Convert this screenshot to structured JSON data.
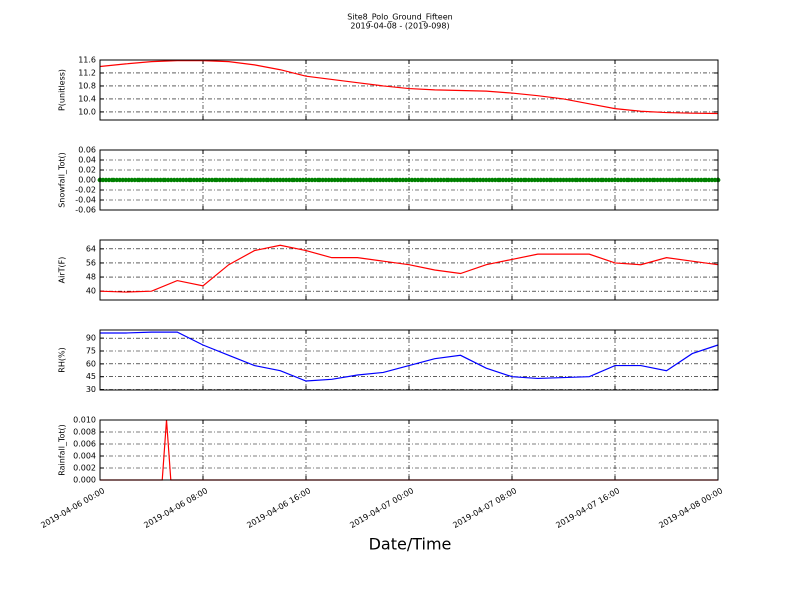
{
  "chart_data": [
    {
      "type": "line",
      "title": "Site8_Polo_Ground_Fifteen",
      "subtitle": "2019-04-08 - (2019-098)",
      "ylabel": "P(unitless)",
      "color": "#ff0000",
      "grid": true,
      "ylim": [
        9.75,
        11.6
      ],
      "yticks": [
        {
          "value": 10,
          "label": "10.0"
        },
        10.4,
        10.8,
        11.2,
        11.6
      ],
      "x": [
        "2019-04-06 00:00",
        "2019-04-06 02:00",
        "2019-04-06 04:00",
        "2019-04-06 06:00",
        "2019-04-06 08:00",
        "2019-04-06 10:00",
        "2019-04-06 12:00",
        "2019-04-06 14:00",
        "2019-04-06 16:00",
        "2019-04-06 18:00",
        "2019-04-06 20:00",
        "2019-04-06 22:00",
        "2019-04-07 00:00",
        "2019-04-07 02:00",
        "2019-04-07 04:00",
        "2019-04-07 06:00",
        "2019-04-07 08:00",
        "2019-04-07 10:00",
        "2019-04-07 12:00",
        "2019-04-07 14:00",
        "2019-04-07 16:00",
        "2019-04-07 18:00",
        "2019-04-07 20:00",
        "2019-04-07 22:00",
        "2019-04-08 00:00"
      ],
      "values": [
        11.4,
        11.48,
        11.55,
        11.58,
        11.58,
        11.55,
        11.45,
        11.3,
        11.1,
        11.0,
        10.9,
        10.8,
        10.72,
        10.68,
        10.66,
        10.64,
        10.58,
        10.5,
        10.4,
        10.25,
        10.1,
        10.02,
        9.98,
        9.96,
        9.95
      ]
    },
    {
      "type": "scatter",
      "ylabel": "Snowfall_Tot()",
      "color": "#008000",
      "grid": true,
      "ylim": [
        -0.06,
        0.06
      ],
      "yticks": [
        -0.06,
        -0.04,
        -0.02,
        {
          "value": 0,
          "label": "0.00"
        },
        0.02,
        0.04,
        0.06
      ],
      "x": [
        "2019-04-06 00:00",
        "2019-04-06 02:00",
        "2019-04-06 04:00",
        "2019-04-06 06:00",
        "2019-04-06 08:00",
        "2019-04-06 10:00",
        "2019-04-06 12:00",
        "2019-04-06 14:00",
        "2019-04-06 16:00",
        "2019-04-06 18:00",
        "2019-04-06 20:00",
        "2019-04-06 22:00",
        "2019-04-07 00:00",
        "2019-04-07 02:00",
        "2019-04-07 04:00",
        "2019-04-07 06:00",
        "2019-04-07 08:00",
        "2019-04-07 10:00",
        "2019-04-07 12:00",
        "2019-04-07 14:00",
        "2019-04-07 16:00",
        "2019-04-07 18:00",
        "2019-04-07 20:00",
        "2019-04-07 22:00",
        "2019-04-08 00:00"
      ],
      "values": [
        0,
        0,
        0,
        0,
        0,
        0,
        0,
        0,
        0,
        0,
        0,
        0,
        0,
        0,
        0,
        0,
        0,
        0,
        0,
        0,
        0,
        0,
        0,
        0,
        0
      ]
    },
    {
      "type": "line",
      "ylabel": "AirT(F)",
      "color": "#ff0000",
      "grid": true,
      "ylim": [
        35,
        69
      ],
      "yticks": [
        40,
        48,
        56,
        64
      ],
      "x": [
        "2019-04-06 00:00",
        "2019-04-06 02:00",
        "2019-04-06 04:00",
        "2019-04-06 06:00",
        "2019-04-06 08:00",
        "2019-04-06 10:00",
        "2019-04-06 12:00",
        "2019-04-06 14:00",
        "2019-04-06 16:00",
        "2019-04-06 18:00",
        "2019-04-06 20:00",
        "2019-04-06 22:00",
        "2019-04-07 00:00",
        "2019-04-07 02:00",
        "2019-04-07 04:00",
        "2019-04-07 06:00",
        "2019-04-07 08:00",
        "2019-04-07 10:00",
        "2019-04-07 12:00",
        "2019-04-07 14:00",
        "2019-04-07 16:00",
        "2019-04-07 18:00",
        "2019-04-07 20:00",
        "2019-04-07 22:00",
        "2019-04-08 00:00"
      ],
      "values": [
        40,
        39.5,
        40,
        46,
        43,
        55,
        63,
        66,
        63,
        59,
        59,
        57,
        55,
        52,
        50,
        55,
        58,
        61,
        61,
        61,
        56,
        55,
        59,
        57,
        55
      ]
    },
    {
      "type": "line",
      "ylabel": "RH(%)",
      "color": "#0000ff",
      "grid": true,
      "ylim": [
        29.5,
        99.5
      ],
      "yticks": [
        30,
        45,
        60,
        75,
        90
      ],
      "x": [
        "2019-04-06 00:00",
        "2019-04-06 02:00",
        "2019-04-06 04:00",
        "2019-04-06 06:00",
        "2019-04-06 08:00",
        "2019-04-06 10:00",
        "2019-04-06 12:00",
        "2019-04-06 14:00",
        "2019-04-06 16:00",
        "2019-04-06 18:00",
        "2019-04-06 20:00",
        "2019-04-06 22:00",
        "2019-04-07 00:00",
        "2019-04-07 02:00",
        "2019-04-07 04:00",
        "2019-04-07 06:00",
        "2019-04-07 08:00",
        "2019-04-07 10:00",
        "2019-04-07 12:00",
        "2019-04-07 14:00",
        "2019-04-07 16:00",
        "2019-04-07 18:00",
        "2019-04-07 20:00",
        "2019-04-07 22:00",
        "2019-04-08 00:00"
      ],
      "values": [
        96,
        96,
        97,
        97,
        82,
        70,
        58,
        52,
        40,
        42,
        47,
        50,
        58,
        66,
        70,
        55,
        45,
        43,
        44,
        45,
        58,
        58,
        52,
        72,
        82
      ]
    },
    {
      "type": "line",
      "ylabel": "Rainfall_Tot()",
      "color": "#ff0000",
      "grid": true,
      "xlabel": "Date/Time",
      "ylim": [
        0,
        0.01
      ],
      "yticks": [
        {
          "value": 0,
          "label": "0.000"
        },
        {
          "value": 0.002,
          "label": "0.002"
        },
        {
          "value": 0.004,
          "label": "0.004"
        },
        {
          "value": 0.006,
          "label": "0.006"
        },
        {
          "value": 0.008,
          "label": "0.008"
        },
        {
          "value": 0.01,
          "label": "0.010"
        }
      ],
      "xlim": [
        "2019-04-06 00:00",
        "2019-04-08 00:00"
      ],
      "xticks": [
        "2019-04-06 00:00",
        "2019-04-06 08:00",
        "2019-04-06 16:00",
        "2019-04-07 00:00",
        "2019-04-07 08:00",
        "2019-04-07 16:00",
        "2019-04-08 00:00"
      ],
      "x": [
        "2019-04-06 00:00",
        "2019-04-06 04:50",
        "2019-04-06 05:10",
        "2019-04-06 05:30",
        "2019-04-08 00:00"
      ],
      "values": [
        0,
        0,
        0.01,
        0,
        0
      ]
    }
  ]
}
